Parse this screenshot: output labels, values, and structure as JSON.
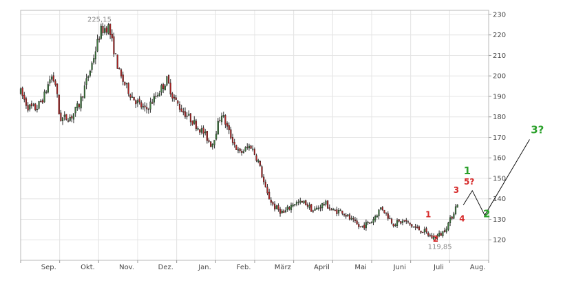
{
  "chart_data": {
    "type": "candlestick",
    "title": "",
    "xlabel": "",
    "ylabel": "",
    "ylim": [
      110,
      232
    ],
    "y_ticks": [
      {
        "value": 120,
        "label": "120"
      },
      {
        "value": 130,
        "label": "130"
      },
      {
        "value": 140,
        "label": "140"
      },
      {
        "value": 150,
        "label": "150"
      },
      {
        "value": 160,
        "label": "160"
      },
      {
        "value": 170,
        "label": "170"
      },
      {
        "value": 180,
        "label": "180"
      },
      {
        "value": 190,
        "label": "190"
      },
      {
        "value": 200,
        "label": "200"
      },
      {
        "value": 210,
        "label": "210"
      },
      {
        "value": 220,
        "label": "220"
      },
      {
        "value": 230,
        "label": "230"
      }
    ],
    "month_labels": [
      "Sep.",
      "Okt.",
      "Nov.",
      "Dez.",
      "Jan.",
      "Feb.",
      "März",
      "April",
      "Mai",
      "Juni",
      "Juli",
      "Aug."
    ],
    "x_range": [
      0,
      12
    ],
    "grid": true,
    "up_color": "#3b7a3b",
    "down_color": "#b52222",
    "wick_color": "#222222",
    "wave1_color": "#d62a2a",
    "wave2_color": "#2aa02a",
    "anchors": [
      {
        "x": 0.0,
        "y": 192
      },
      {
        "x": 0.18,
        "y": 185
      },
      {
        "x": 0.4,
        "y": 184
      },
      {
        "x": 0.6,
        "y": 190
      },
      {
        "x": 0.78,
        "y": 200
      },
      {
        "x": 0.9,
        "y": 196
      },
      {
        "x": 1.0,
        "y": 179
      },
      {
        "x": 1.3,
        "y": 180
      },
      {
        "x": 1.5,
        "y": 186
      },
      {
        "x": 1.8,
        "y": 204
      },
      {
        "x": 2.05,
        "y": 222
      },
      {
        "x": 2.25,
        "y": 224
      },
      {
        "x": 2.55,
        "y": 200
      },
      {
        "x": 2.85,
        "y": 190
      },
      {
        "x": 3.2,
        "y": 183
      },
      {
        "x": 3.5,
        "y": 191
      },
      {
        "x": 3.75,
        "y": 198
      },
      {
        "x": 3.9,
        "y": 190
      },
      {
        "x": 4.1,
        "y": 184
      },
      {
        "x": 4.4,
        "y": 178
      },
      {
        "x": 4.7,
        "y": 172
      },
      {
        "x": 4.9,
        "y": 166
      },
      {
        "x": 5.15,
        "y": 182
      },
      {
        "x": 5.35,
        "y": 172
      },
      {
        "x": 5.6,
        "y": 162
      },
      {
        "x": 5.9,
        "y": 166
      },
      {
        "x": 6.1,
        "y": 158
      },
      {
        "x": 6.3,
        "y": 143
      },
      {
        "x": 6.5,
        "y": 136
      },
      {
        "x": 6.75,
        "y": 133
      },
      {
        "x": 7.0,
        "y": 138
      },
      {
        "x": 7.3,
        "y": 138
      },
      {
        "x": 7.5,
        "y": 134
      },
      {
        "x": 7.8,
        "y": 138
      },
      {
        "x": 8.0,
        "y": 134
      },
      {
        "x": 8.25,
        "y": 134
      },
      {
        "x": 8.45,
        "y": 130
      },
      {
        "x": 8.7,
        "y": 126
      },
      {
        "x": 9.0,
        "y": 129
      },
      {
        "x": 9.25,
        "y": 136
      },
      {
        "x": 9.55,
        "y": 128
      },
      {
        "x": 9.85,
        "y": 129
      },
      {
        "x": 10.1,
        "y": 126
      },
      {
        "x": 10.35,
        "y": 124
      },
      {
        "x": 10.55,
        "y": 121
      },
      {
        "x": 10.8,
        "y": 123
      },
      {
        "x": 11.0,
        "y": 129
      },
      {
        "x": 11.2,
        "y": 138
      }
    ],
    "annotations": [
      {
        "text": "225,15",
        "x": 2.02,
        "y": 225.15,
        "kind": "high"
      },
      {
        "text": "119,85",
        "x": 10.75,
        "y": 119.85,
        "kind": "low"
      }
    ],
    "wave_labels": [
      {
        "text": "1",
        "x": 10.45,
        "y": 131,
        "color": "red"
      },
      {
        "text": "2",
        "x": 10.64,
        "y": 119,
        "color": "red"
      },
      {
        "text": "3",
        "x": 11.17,
        "y": 143,
        "color": "red"
      },
      {
        "text": "4",
        "x": 11.32,
        "y": 129,
        "color": "red"
      },
      {
        "text": "5?",
        "x": 11.5,
        "y": 147,
        "color": "red"
      },
      {
        "text": "1",
        "x": 11.45,
        "y": 152,
        "color": "green"
      },
      {
        "text": "2",
        "x": 11.95,
        "y": 131,
        "color": "green"
      },
      {
        "text": "3?",
        "x": 13.25,
        "y": 172,
        "color": "green"
      }
    ],
    "projection_line": [
      {
        "x": 11.35,
        "y": 137
      },
      {
        "x": 11.58,
        "y": 144
      },
      {
        "x": 11.9,
        "y": 132
      },
      {
        "x": 13.05,
        "y": 169
      }
    ]
  }
}
